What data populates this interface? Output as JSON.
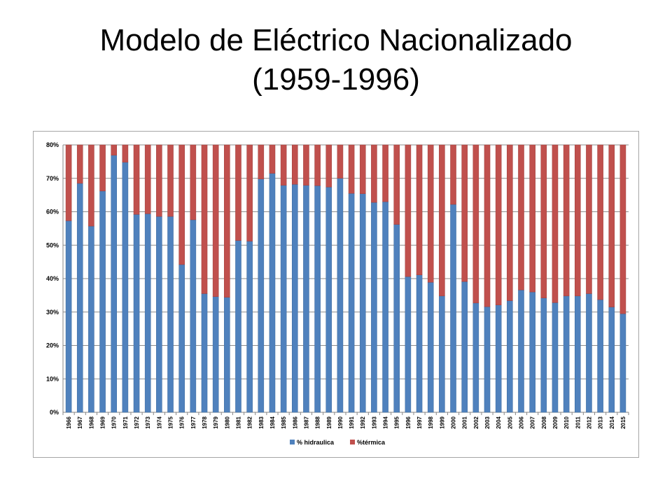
{
  "slide": {
    "title_line1": "Modelo de Eléctrico Nacionalizado",
    "title_line2": "(1959-1996)"
  },
  "chart_data": {
    "type": "bar",
    "stacked": true,
    "categories": [
      "1966",
      "1967",
      "1968",
      "1969",
      "1970",
      "1971",
      "1972",
      "1973",
      "1974",
      "1975",
      "1976",
      "1977",
      "1978",
      "1979",
      "1980",
      "1981",
      "1982",
      "1983",
      "1984",
      "1985",
      "1986",
      "1987",
      "1988",
      "1989",
      "1990",
      "1991",
      "1992",
      "1993",
      "1994",
      "1995",
      "1996",
      "1997",
      "1998",
      "1999",
      "2000",
      "2001",
      "2002",
      "2003",
      "2004",
      "2005",
      "2006",
      "2007",
      "2008",
      "2009",
      "2010",
      "2011",
      "2012",
      "2013",
      "2014",
      "2015"
    ],
    "series": [
      {
        "name": "% hidraulica",
        "color": "#4f81bd",
        "values": [
          57.3,
          68.5,
          55.7,
          66.2,
          76.9,
          74.8,
          59.2,
          59.4,
          58.6,
          58.6,
          44.2,
          57.6,
          35.5,
          34.6,
          34.4,
          51.4,
          51.2,
          69.8,
          71.5,
          67.9,
          68.2,
          67.9,
          67.8,
          67.4,
          70.0,
          65.5,
          65.4,
          62.8,
          63.0,
          56.2,
          40.6,
          41.1,
          38.9,
          34.8,
          62.2,
          39.1,
          32.7,
          31.6,
          32.1,
          33.4,
          36.6,
          36.0,
          34.2,
          32.8,
          34.8,
          34.8,
          35.5,
          33.7,
          31.5,
          29.5
        ]
      },
      {
        "name": "%térmica",
        "color": "#c0504d",
        "values": [
          22.7,
          11.5,
          24.3,
          13.8,
          3.1,
          5.2,
          20.8,
          20.6,
          21.4,
          21.4,
          35.8,
          22.4,
          44.5,
          45.4,
          45.6,
          28.6,
          28.8,
          10.2,
          8.5,
          12.1,
          11.8,
          12.1,
          12.2,
          12.6,
          10.0,
          14.5,
          14.6,
          17.2,
          17.0,
          23.8,
          39.4,
          38.9,
          41.1,
          45.2,
          17.8,
          40.9,
          47.3,
          48.4,
          47.9,
          46.6,
          43.4,
          44.0,
          45.8,
          47.2,
          45.2,
          45.2,
          44.5,
          46.3,
          48.5,
          50.5
        ]
      }
    ],
    "y_ticks": [
      "0%",
      "10%",
      "20%",
      "30%",
      "40%",
      "50%",
      "60%",
      "70%",
      "80%"
    ],
    "ylim": [
      0,
      80
    ],
    "grid": true,
    "legend": {
      "position": "bottom"
    }
  }
}
